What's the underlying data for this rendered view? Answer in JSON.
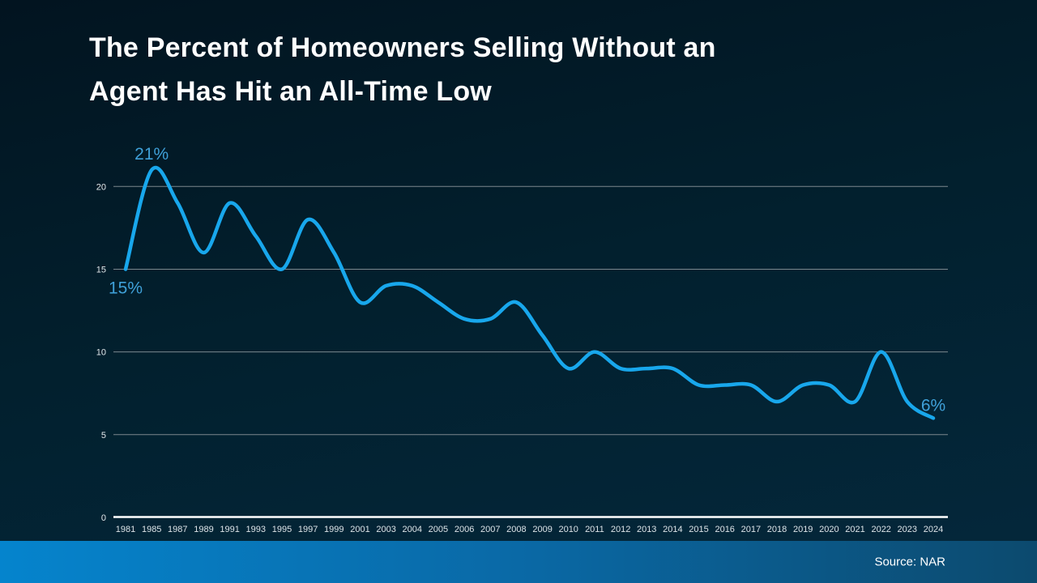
{
  "title": {
    "line1": "The Percent of Homeowners Selling Without an",
    "line2": "Agent Has Hit an All-Time Low"
  },
  "footer": {
    "source": "Source: NAR"
  },
  "colors": {
    "background_top": "#021420",
    "background_bottom": "#04283c",
    "line": "#18a7ec",
    "annotation_text": "#3fa0d8",
    "gridline": "#7d878e",
    "baseline": "#ffffff",
    "axis_text": "#e3e8eb",
    "title_text": "#ffffff",
    "footer_left": "#0584cd",
    "footer_right": "#0c4a6e",
    "source_text": "#ffffff"
  },
  "chart_data": {
    "type": "line",
    "title": "The Percent of Homeowners Selling Without an Agent Has Hit an All-Time Low",
    "xlabel": "",
    "ylabel": "",
    "ylim": [
      0,
      22
    ],
    "yticks": [
      0,
      5,
      10,
      15,
      20
    ],
    "grid": true,
    "legend": false,
    "categories": [
      "1981",
      "1985",
      "1987",
      "1989",
      "1991",
      "1993",
      "1995",
      "1997",
      "1999",
      "2001",
      "2003",
      "2004",
      "2005",
      "2006",
      "2007",
      "2008",
      "2009",
      "2010",
      "2011",
      "2012",
      "2013",
      "2014",
      "2015",
      "2016",
      "2017",
      "2018",
      "2019",
      "2020",
      "2021",
      "2022",
      "2023",
      "2024"
    ],
    "values": [
      15,
      21,
      19,
      16,
      19,
      17,
      15,
      18,
      16,
      13,
      14,
      14,
      13,
      12,
      12,
      13,
      11,
      9,
      10,
      9,
      9,
      9,
      8,
      8,
      8,
      7,
      8,
      8,
      7,
      10,
      7,
      6
    ],
    "annotations": [
      {
        "text": "21%",
        "year": "1985",
        "value": 21,
        "position": "above"
      },
      {
        "text": "15%",
        "year": "1981",
        "value": 15,
        "position": "below"
      },
      {
        "text": "6%",
        "year": "2024",
        "value": 6,
        "position": "above-end"
      }
    ]
  }
}
